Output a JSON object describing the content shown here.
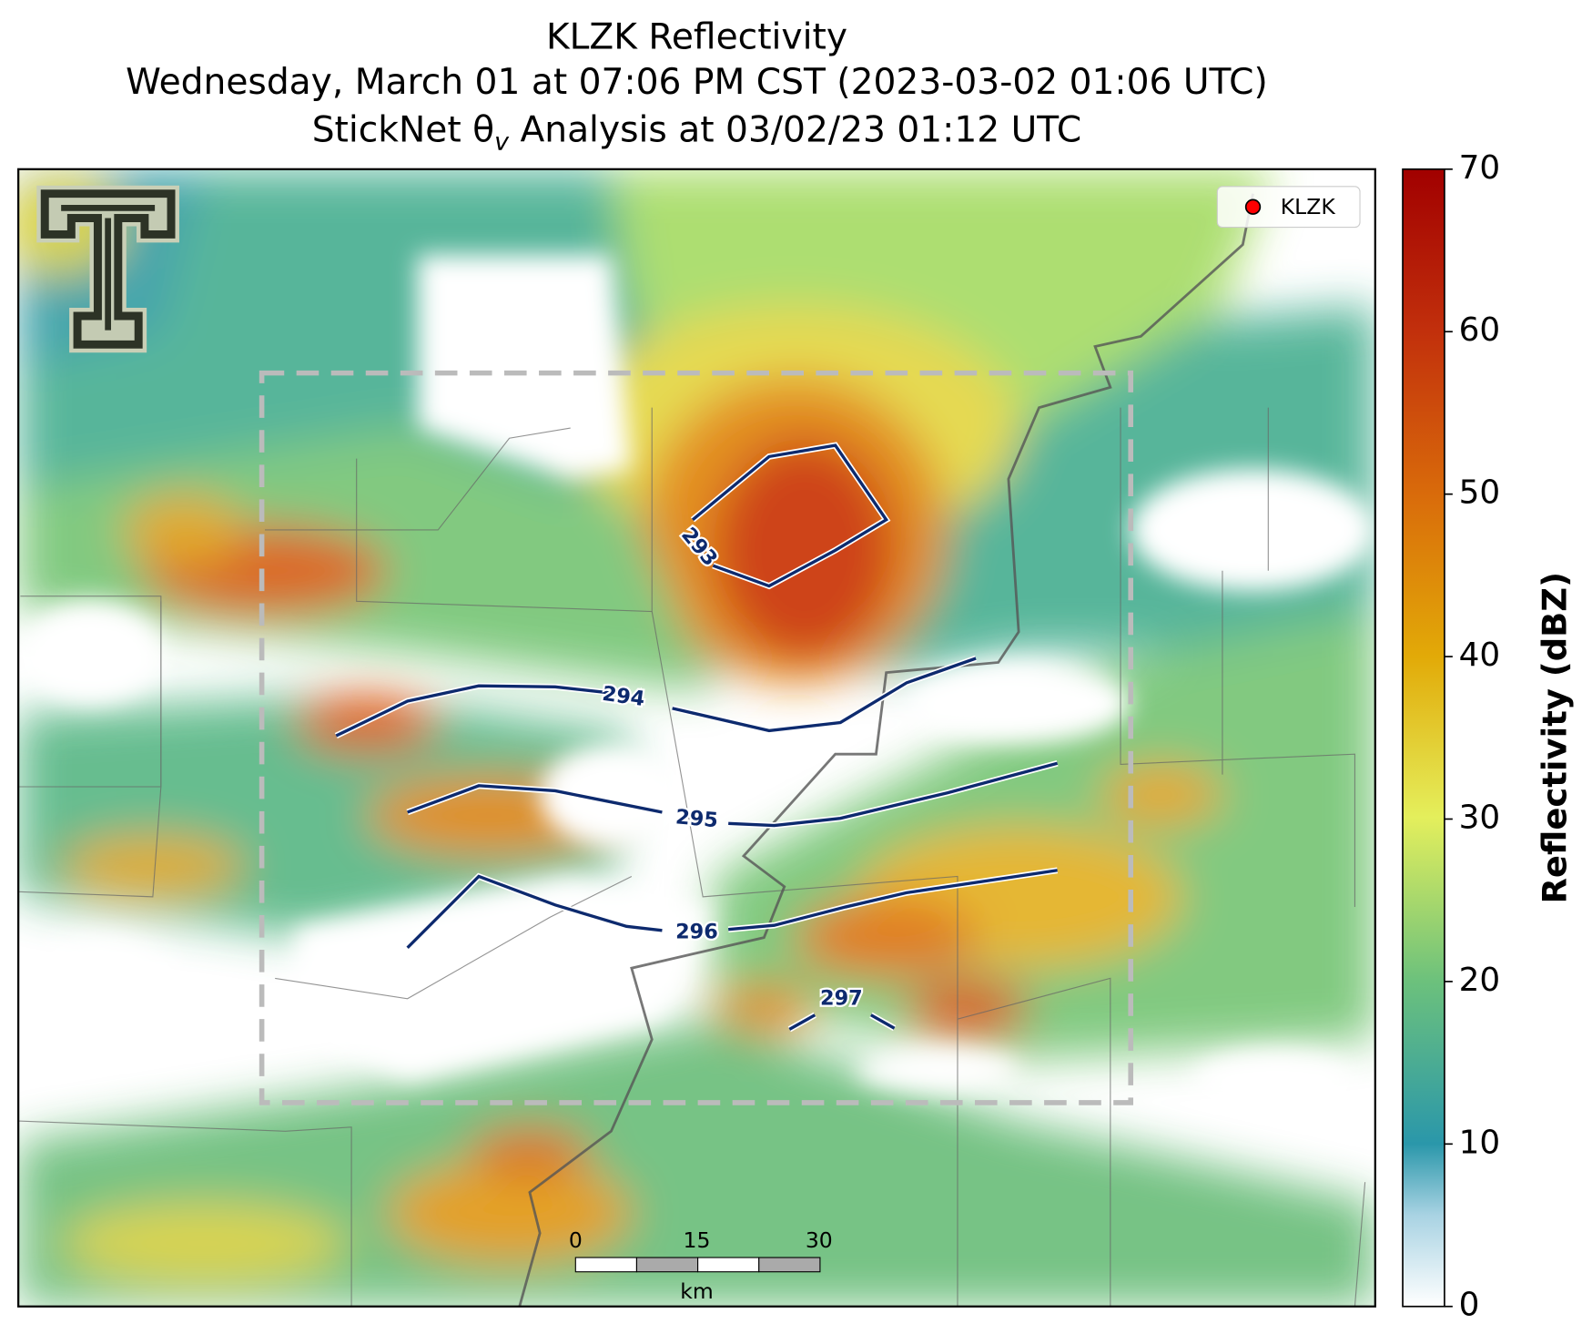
{
  "title": {
    "line1": "KLZK Reflectivity",
    "line2": "Wednesday, March 01 at 07:06 PM CST (2023-03-02 01:06 UTC)",
    "line3_prefix": "StickNet θ",
    "line3_subscript": "v",
    "line3_suffix": " Analysis at 03/02/23 01:12 UTC"
  },
  "legend": {
    "label": "KLZK",
    "color": "#ff0000"
  },
  "contour_labels": [
    "293",
    "294",
    "295",
    "296",
    "297"
  ],
  "scale_bar": {
    "labels": [
      "0",
      "15",
      "30"
    ],
    "unit": "km"
  },
  "colorbar": {
    "label": "Reflectivity (dBZ)",
    "lim": [
      0,
      70
    ],
    "ticks": [
      0,
      10,
      20,
      30,
      40,
      50,
      60,
      70
    ]
  }
}
